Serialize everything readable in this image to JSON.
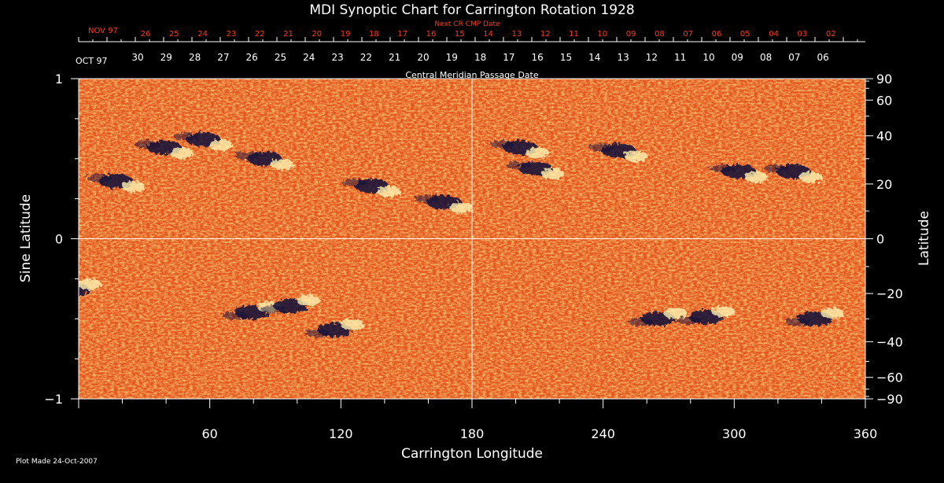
{
  "chart_data": {
    "type": "heatmap",
    "title": "MDI Synoptic Chart for Carrington Rotation 1928",
    "xlabel": "Carrington Longitude",
    "ylabel_left": "Sine Latitude",
    "ylabel_right": "Latitude",
    "xlim": [
      0,
      360
    ],
    "ylim": [
      -1,
      1
    ],
    "x_ticks": [
      60,
      120,
      180,
      240,
      300,
      360
    ],
    "y_left_ticks": [
      {
        "value": 1,
        "label": "1"
      },
      {
        "value": 0,
        "label": "0"
      },
      {
        "value": -1,
        "label": "−1"
      }
    ],
    "y_right_ticks": [
      {
        "lat": 90,
        "label": "90"
      },
      {
        "lat": 60,
        "label": "60"
      },
      {
        "lat": 40,
        "label": "40"
      },
      {
        "lat": 20,
        "label": "20"
      },
      {
        "lat": 0,
        "label": "0"
      },
      {
        "lat": -20,
        "label": "−20"
      },
      {
        "lat": -40,
        "label": "−40"
      },
      {
        "lat": -60,
        "label": "−60"
      },
      {
        "lat": -90,
        "label": "−90"
      }
    ],
    "cmp_axis": {
      "label": "Central Meridian Passage Date",
      "month_label": "OCT 97",
      "dates": [
        "30",
        "29",
        "28",
        "27",
        "26",
        "25",
        "24",
        "23",
        "22",
        "21",
        "20",
        "19",
        "18",
        "17",
        "16",
        "15",
        "14",
        "13",
        "12",
        "11",
        "10",
        "09",
        "08",
        "07",
        "06"
      ]
    },
    "next_cr_axis": {
      "label": "Next CR CMP Date",
      "month_label": "NOV 97",
      "dates": [
        "26",
        "25",
        "24",
        "23",
        "22",
        "21",
        "20",
        "19",
        "18",
        "17",
        "16",
        "15",
        "14",
        "13",
        "12",
        "11",
        "10",
        "09",
        "08",
        "07",
        "06",
        "05",
        "04",
        "03",
        "02"
      ]
    },
    "grid_lines": {
      "vertical_at_longitude": 180,
      "horizontal_at_sine_latitude": 0
    },
    "active_regions": [
      {
        "longitude": 20,
        "sin_lat": 0.34
      },
      {
        "longitude": 42,
        "sin_lat": 0.55
      },
      {
        "longitude": 60,
        "sin_lat": 0.6
      },
      {
        "longitude": 88,
        "sin_lat": 0.48
      },
      {
        "longitude": 137,
        "sin_lat": 0.31
      },
      {
        "longitude": 170,
        "sin_lat": 0.21
      },
      {
        "longitude": 205,
        "sin_lat": 0.55
      },
      {
        "longitude": 212,
        "sin_lat": 0.42
      },
      {
        "longitude": 250,
        "sin_lat": 0.53
      },
      {
        "longitude": 305,
        "sin_lat": 0.4
      },
      {
        "longitude": 330,
        "sin_lat": 0.4
      },
      {
        "longitude": 0,
        "sin_lat": -0.3
      },
      {
        "longitude": 82,
        "sin_lat": -0.44
      },
      {
        "longitude": 100,
        "sin_lat": -0.4
      },
      {
        "longitude": 120,
        "sin_lat": -0.55
      },
      {
        "longitude": 268,
        "sin_lat": -0.48
      },
      {
        "longitude": 290,
        "sin_lat": -0.47
      },
      {
        "longitude": 340,
        "sin_lat": -0.48
      }
    ],
    "colors": {
      "background": "#000000",
      "field": "#e8541a",
      "positive_polarity": "#fff2b0",
      "negative_polarity": "#0d0d3a",
      "axis": "#ffffff",
      "top_axis_text": "#ff3a1a"
    }
  },
  "footer": {
    "plot_made": "Plot Made 24-Oct-2007"
  }
}
